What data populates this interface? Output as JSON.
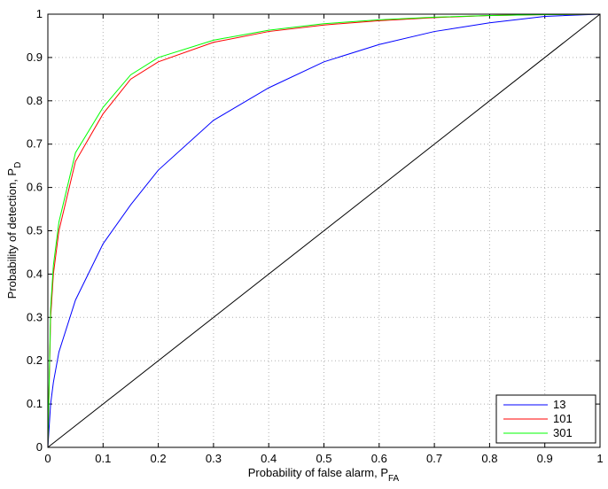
{
  "chart_data": {
    "type": "line",
    "x_label": "Probability of false alarm, P",
    "x_label_sub": "FA",
    "y_label": "Probability of detection, P",
    "y_label_sub": "D",
    "x": [
      0,
      0.005,
      0.01,
      0.02,
      0.05,
      0.1,
      0.15,
      0.2,
      0.3,
      0.4,
      0.5,
      0.6,
      0.7,
      0.8,
      0.9,
      1
    ],
    "series": [
      {
        "name": "13",
        "color": "#0000ff",
        "values": [
          0,
          0.1,
          0.15,
          0.22,
          0.34,
          0.47,
          0.56,
          0.64,
          0.755,
          0.83,
          0.89,
          0.93,
          0.96,
          0.98,
          0.995,
          1
        ]
      },
      {
        "name": "101",
        "color": "#ff0000",
        "values": [
          0,
          0.3,
          0.4,
          0.5,
          0.66,
          0.77,
          0.85,
          0.89,
          0.935,
          0.96,
          0.975,
          0.985,
          0.992,
          0.997,
          0.999,
          1
        ]
      },
      {
        "name": "301",
        "color": "#00ff00",
        "values": [
          0,
          0.32,
          0.42,
          0.52,
          0.68,
          0.785,
          0.86,
          0.9,
          0.94,
          0.963,
          0.978,
          0.987,
          0.993,
          0.997,
          0.999,
          1
        ]
      }
    ],
    "reference_line": {
      "color": "#000000",
      "x": [
        0,
        1
      ],
      "values": [
        0,
        1
      ]
    },
    "xlim": [
      0,
      1
    ],
    "ylim": [
      0,
      1
    ],
    "xticks": [
      0,
      0.1,
      0.2,
      0.3,
      0.4,
      0.5,
      0.6,
      0.7,
      0.8,
      0.9,
      1
    ],
    "yticks": [
      0,
      0.1,
      0.2,
      0.3,
      0.4,
      0.5,
      0.6,
      0.7,
      0.8,
      0.9,
      1
    ],
    "grid": true,
    "legend": "lower-right"
  }
}
